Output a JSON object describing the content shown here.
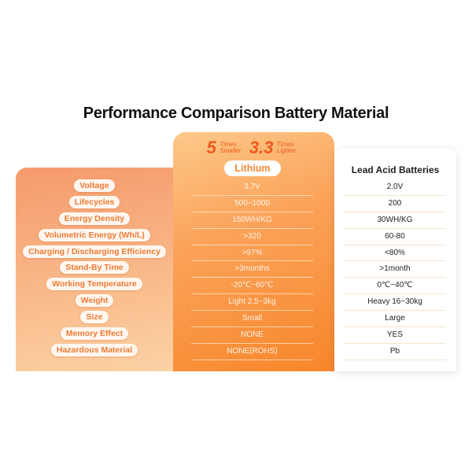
{
  "title": "Performance Comparison Battery Material",
  "badge": {
    "n1": "5",
    "t1a": "Times",
    "t1b": "Smaller",
    "n2": "3.3",
    "t2a": "Times",
    "t2b": "Lighter"
  },
  "columns": {
    "lithium": "Lithium",
    "lead": "Lead Acid Batteries"
  },
  "rows": [
    {
      "label": "Voltage",
      "lithium": "3.7V",
      "lead": "2.0V"
    },
    {
      "label": "Lifecycles",
      "lithium": "500~1000",
      "lead": "200"
    },
    {
      "label": "Energy Density",
      "lithium": "150WH/KG",
      "lead": "30WH/KG"
    },
    {
      "label": "Volumetric Energy (Wh/L)",
      "lithium": ">320",
      "lead": "60-80"
    },
    {
      "label": "Charging / Discharging Efficiency",
      "lithium": ">97%",
      "lead": "<80%"
    },
    {
      "label": "Stand-By Time",
      "lithium": ">3months",
      "lead": ">1month"
    },
    {
      "label": "Working Temperature",
      "lithium": "-20℃~60℃",
      "lead": "0℃~40℃"
    },
    {
      "label": "Weight",
      "lithium": "Light 2.5~3kg",
      "lead": "Heavy 16~30kg"
    },
    {
      "label": "Size",
      "lithium": "Small",
      "lead": "Large"
    },
    {
      "label": "Memory Effect",
      "lithium": "NONE",
      "lead": "YES"
    },
    {
      "label": "Hazardous Material",
      "lithium": "NONE(ROHS)",
      "lead": "Pb"
    }
  ]
}
